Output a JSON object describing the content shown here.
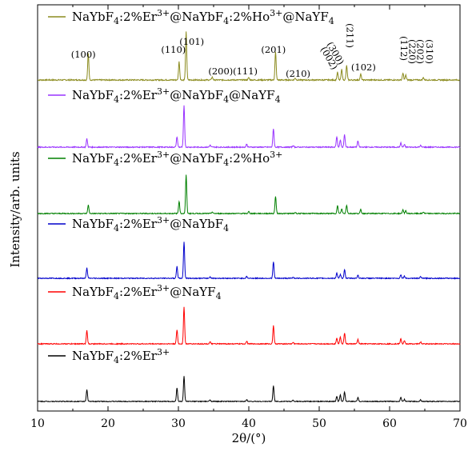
{
  "chart_data": {
    "type": "line",
    "xlabel": "2θ/(°)",
    "ylabel": "Intensity/arb. units",
    "xlim": [
      10,
      70
    ],
    "xticks": [
      "10",
      "20",
      "30",
      "40",
      "50",
      "60",
      "70"
    ],
    "grid": false,
    "legend_placement": "inline-top-left-of-each-trace",
    "series": [
      {
        "name": "NaYbF4:2%Er3+@NaYbF4:2%Ho3+@NaYF4",
        "name_parts": {
          "base": "NaYbF",
          "sub1": "4",
          "mid1": ":2%Er",
          "sup1": "3+",
          "mid2": "@NaYbF",
          "sub2": "4",
          "mid3": ":2%Ho",
          "sup2": "3+",
          "mid4": "@NaYF",
          "sub3": "4"
        },
        "color": "#8b8b1e",
        "shift": 0.4,
        "peaks": [
          [
            17.2,
            0.55
          ],
          [
            30.1,
            0.38
          ],
          [
            31.1,
            1.0
          ],
          [
            34.8,
            0.06
          ],
          [
            40.0,
            0.05
          ],
          [
            43.8,
            0.58
          ],
          [
            46.6,
            0.04
          ],
          [
            52.6,
            0.16
          ],
          [
            53.2,
            0.22
          ],
          [
            53.9,
            0.3
          ],
          [
            55.9,
            0.12
          ],
          [
            61.9,
            0.14
          ],
          [
            62.3,
            0.1
          ],
          [
            64.8,
            0.05
          ]
        ]
      },
      {
        "name": "NaYbF4:2%Er3+@NaYbF4@NaYF4",
        "name_parts": {
          "base": "NaYbF",
          "sub1": "4",
          "mid1": ":2%Er",
          "sup1": "3+",
          "mid2": "@NaYbF",
          "sub2": "4",
          "mid3": "@NaYF",
          "sub3": "4"
        },
        "color": "#9933ff",
        "shift": 0.0,
        "peaks": [
          [
            17.0,
            0.2
          ],
          [
            29.8,
            0.25
          ],
          [
            30.8,
            1.0
          ],
          [
            34.5,
            0.05
          ],
          [
            39.7,
            0.07
          ],
          [
            43.5,
            0.45
          ],
          [
            46.3,
            0.04
          ],
          [
            52.5,
            0.25
          ],
          [
            53.0,
            0.17
          ],
          [
            53.6,
            0.3
          ],
          [
            55.5,
            0.15
          ],
          [
            61.6,
            0.1
          ],
          [
            62.1,
            0.06
          ],
          [
            64.4,
            0.04
          ]
        ]
      },
      {
        "name": "NaYbF4:2%Er3+@NaYbF4:2%Ho3+",
        "name_parts": {
          "base": "NaYbF",
          "sub1": "4",
          "mid1": ":2%Er",
          "sup1": "3+",
          "mid2": "@NaYbF",
          "sub2": "4",
          "mid3": ":2%Ho",
          "sup2": "3+"
        },
        "color": "#008000",
        "shift": 0.4,
        "peaks": [
          [
            17.2,
            0.22
          ],
          [
            30.1,
            0.32
          ],
          [
            31.1,
            1.0
          ],
          [
            34.8,
            0.04
          ],
          [
            40.0,
            0.05
          ],
          [
            43.8,
            0.45
          ],
          [
            46.6,
            0.03
          ],
          [
            52.6,
            0.2
          ],
          [
            53.2,
            0.12
          ],
          [
            53.9,
            0.22
          ],
          [
            55.9,
            0.1
          ],
          [
            61.9,
            0.1
          ],
          [
            62.3,
            0.07
          ],
          [
            64.8,
            0.04
          ]
        ]
      },
      {
        "name": "NaYbF4:2%Er3+@NaYbF4",
        "name_parts": {
          "base": "NaYbF",
          "sub1": "4",
          "mid1": ":2%Er",
          "sup1": "3+",
          "mid2": "@NaYbF",
          "sub2": "4"
        },
        "color": "#0000cc",
        "shift": 0.0,
        "peaks": [
          [
            17.0,
            0.28
          ],
          [
            29.8,
            0.32
          ],
          [
            30.8,
            1.0
          ],
          [
            34.5,
            0.04
          ],
          [
            39.7,
            0.05
          ],
          [
            43.5,
            0.45
          ],
          [
            46.3,
            0.03
          ],
          [
            52.5,
            0.14
          ],
          [
            53.0,
            0.1
          ],
          [
            53.6,
            0.24
          ],
          [
            55.5,
            0.09
          ],
          [
            61.6,
            0.1
          ],
          [
            62.1,
            0.06
          ],
          [
            64.4,
            0.04
          ]
        ]
      },
      {
        "name": "NaYbF4:2%Er3+@NaYF4",
        "name_parts": {
          "base": "NaYbF",
          "sub1": "4",
          "mid1": ":2%Er",
          "sup1": "3+",
          "mid2": "@NaYF",
          "sub2": "4"
        },
        "color": "#ff0000",
        "shift": 0.0,
        "peaks": [
          [
            17.0,
            0.36
          ],
          [
            29.8,
            0.38
          ],
          [
            30.8,
            1.0
          ],
          [
            34.5,
            0.05
          ],
          [
            39.7,
            0.07
          ],
          [
            43.5,
            0.5
          ],
          [
            46.3,
            0.04
          ],
          [
            52.5,
            0.16
          ],
          [
            53.0,
            0.2
          ],
          [
            53.6,
            0.3
          ],
          [
            55.5,
            0.12
          ],
          [
            61.6,
            0.14
          ],
          [
            62.1,
            0.08
          ],
          [
            64.4,
            0.05
          ]
        ]
      },
      {
        "name": "NaYbF4:2%Er3+",
        "name_parts": {
          "base": "NaYbF",
          "sub1": "4",
          "mid1": ":2%Er",
          "sup1": "3+"
        },
        "color": "#000000",
        "shift": 0.0,
        "peaks": [
          [
            17.0,
            0.36
          ],
          [
            29.8,
            0.42
          ],
          [
            30.8,
            0.78
          ],
          [
            34.5,
            0.05
          ],
          [
            39.7,
            0.06
          ],
          [
            43.5,
            0.5
          ],
          [
            46.3,
            0.04
          ],
          [
            52.5,
            0.15
          ],
          [
            53.0,
            0.2
          ],
          [
            53.6,
            0.3
          ],
          [
            55.5,
            0.12
          ],
          [
            61.6,
            0.14
          ],
          [
            62.1,
            0.06
          ],
          [
            64.4,
            0.05
          ]
        ]
      }
    ],
    "peak_annotations": [
      {
        "label": "(100)",
        "x": 16.5,
        "rotated": false
      },
      {
        "label": "(110)",
        "x": 29.3,
        "rotated": false
      },
      {
        "label": "(101)",
        "x": 31.9,
        "rotated": false
      },
      {
        "label": "(200)",
        "x": 36.0,
        "rotated": false
      },
      {
        "label": "(111)",
        "x": 39.5,
        "rotated": false
      },
      {
        "label": "(201)",
        "x": 43.5,
        "rotated": false
      },
      {
        "label": "(210)",
        "x": 47.0,
        "rotated": false
      },
      {
        "label": "(002)",
        "x": 51.9,
        "rotated": true
      },
      {
        "label": "(300)",
        "x": 52.8,
        "rotated": true
      },
      {
        "label": "(211)",
        "x": 53.9,
        "rotated": true
      },
      {
        "label": "(102)",
        "x": 56.3,
        "rotated": false
      },
      {
        "label": "(112)",
        "x": 61.6,
        "rotated": true
      },
      {
        "label": "(220)",
        "x": 62.8,
        "rotated": true
      },
      {
        "label": "(202)",
        "x": 63.9,
        "rotated": true
      },
      {
        "label": "(310)",
        "x": 65.2,
        "rotated": true
      }
    ]
  }
}
